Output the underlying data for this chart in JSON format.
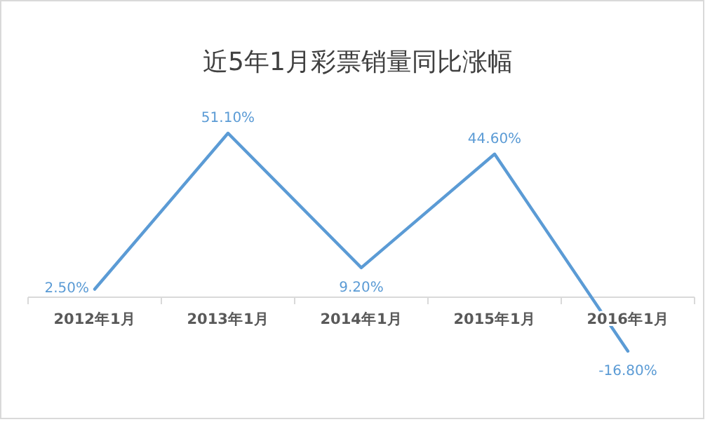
{
  "chart_data": {
    "type": "line",
    "title": "近5年1月彩票销量同比涨幅",
    "categories": [
      "2012年1月",
      "2013年1月",
      "2014年1月",
      "2015年1月",
      "2016年1月"
    ],
    "series": [
      {
        "color": "#5b9bd5",
        "values": [
          2.5,
          51.1,
          9.2,
          44.6,
          -16.8
        ],
        "value_labels": [
          "2.50%",
          "51.10%",
          "9.20%",
          "44.60%",
          "-16.80%"
        ]
      }
    ],
    "marker": "none"
  }
}
